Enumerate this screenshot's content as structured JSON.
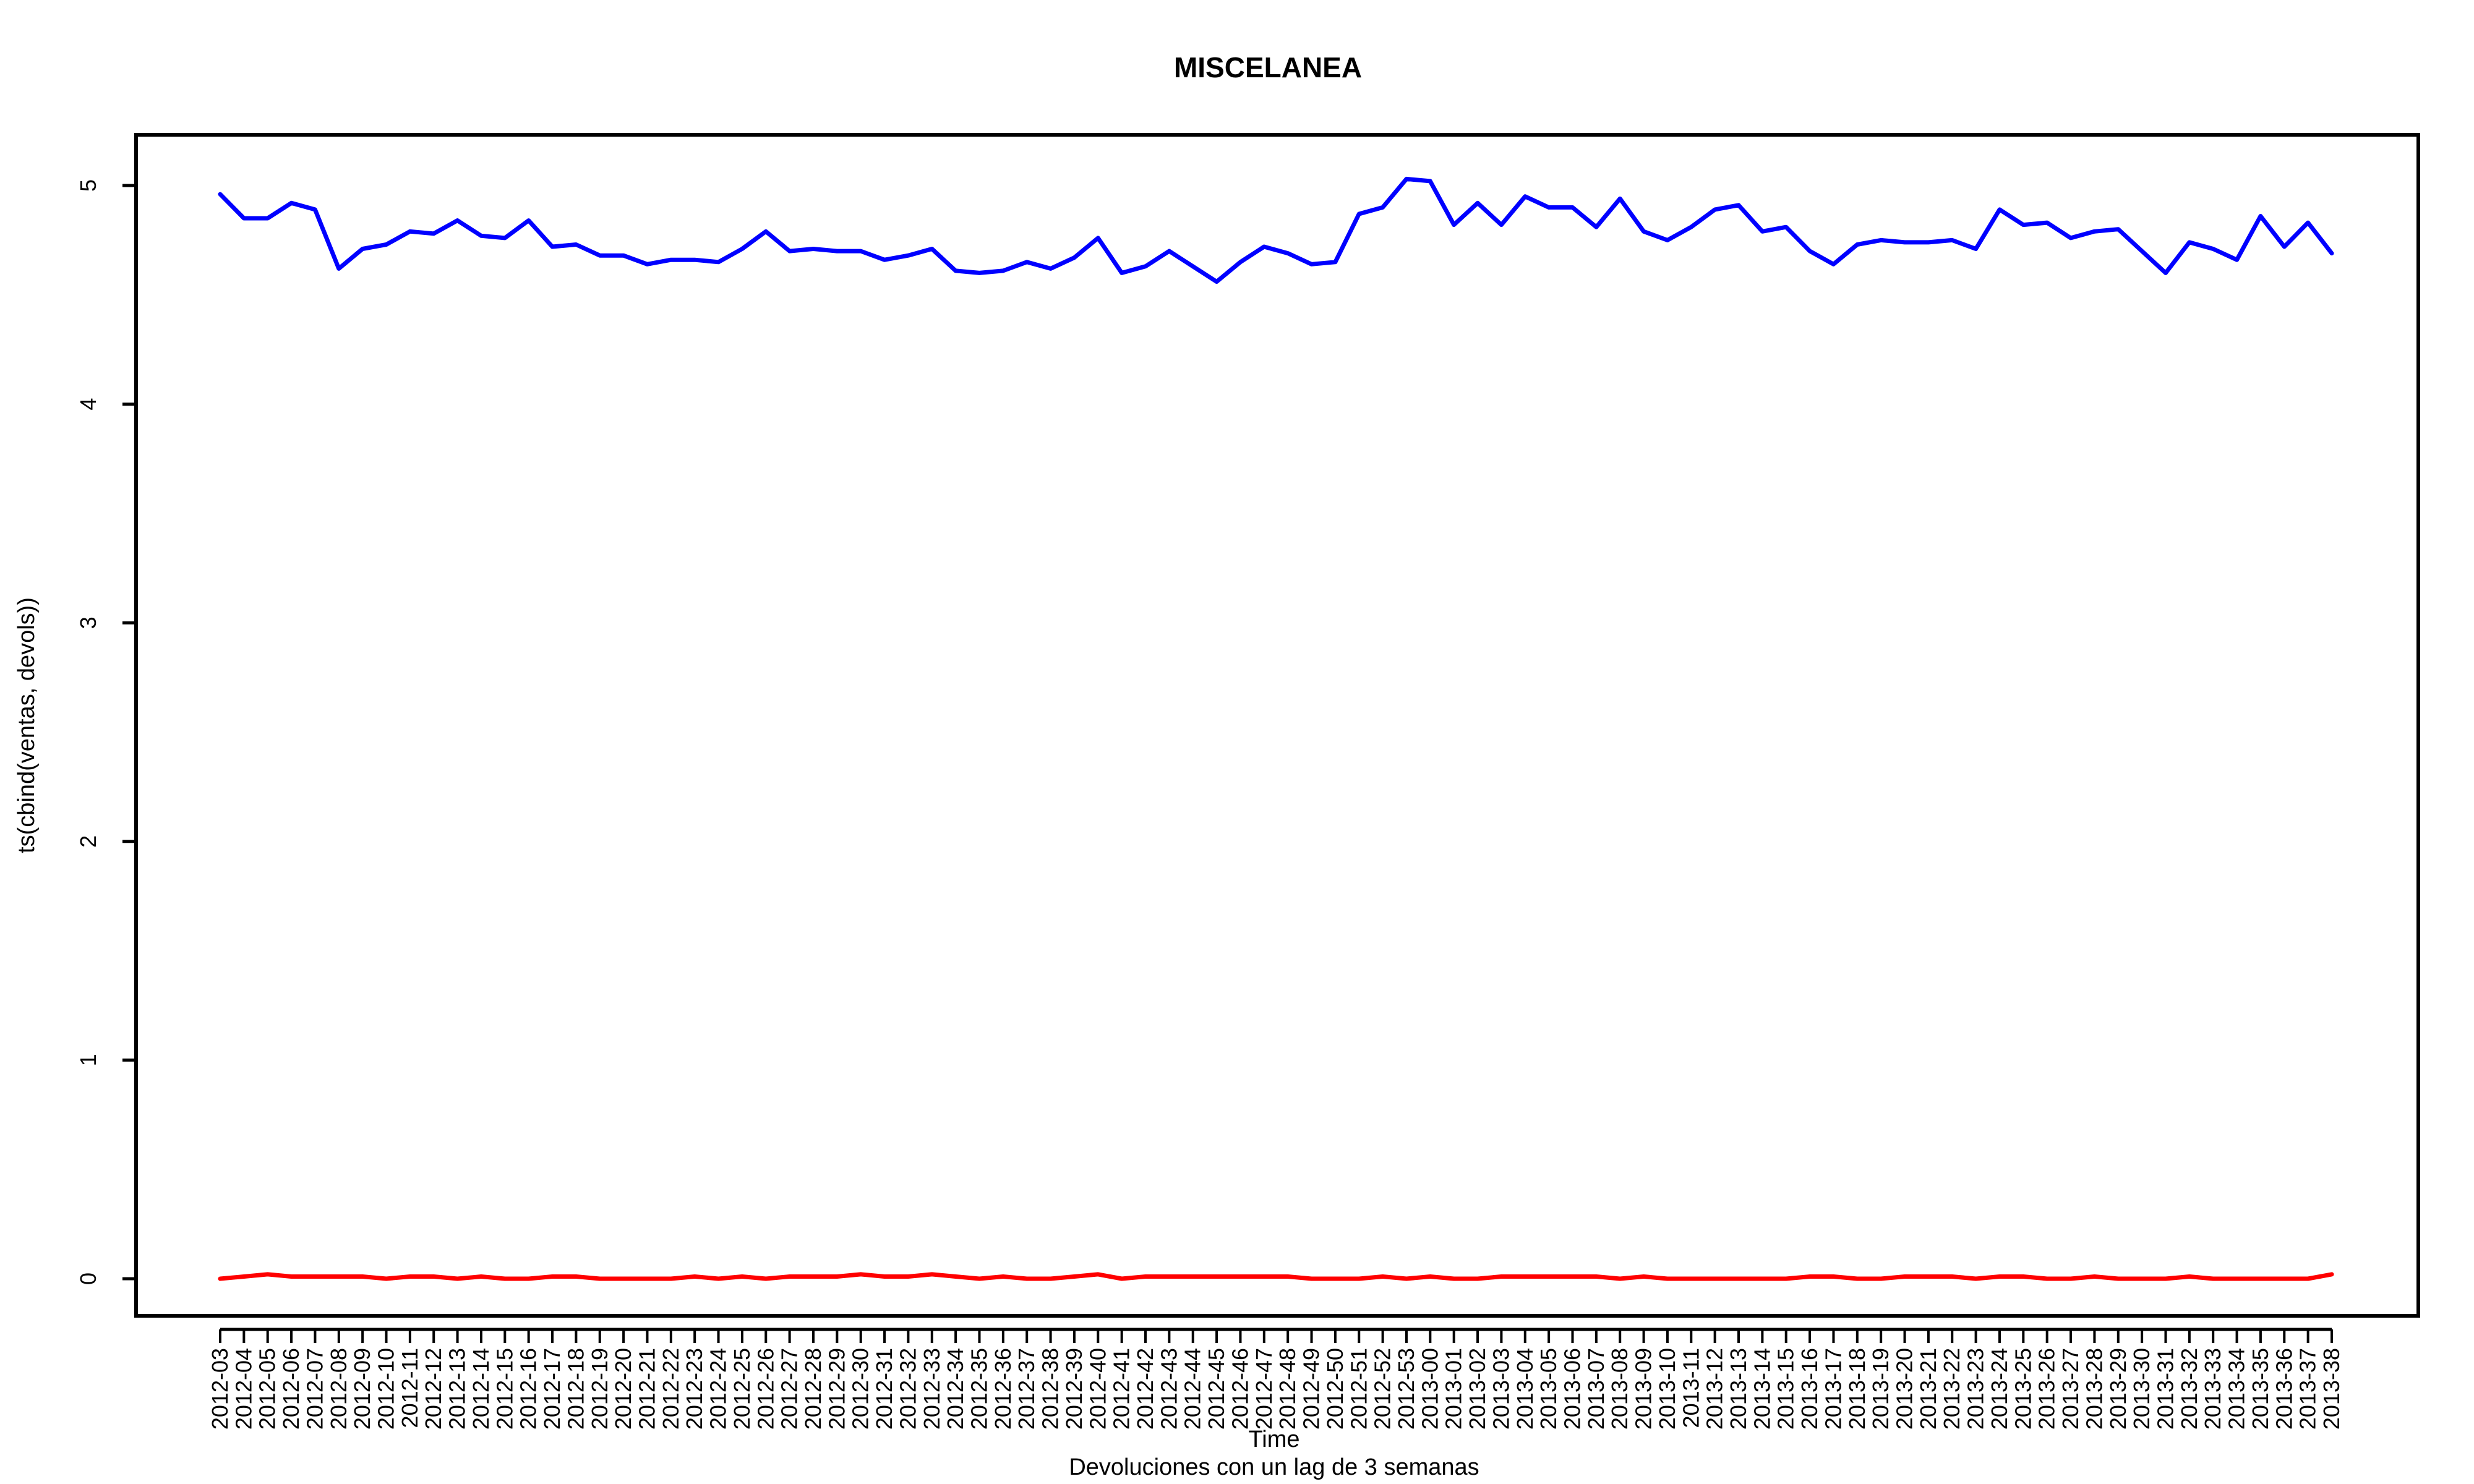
{
  "chart_data": {
    "type": "line",
    "title": "MISCELANEA",
    "xlabel": "Time",
    "ylabel": "ts(cbind(ventas, devols))",
    "subtitle": "Devoluciones con un lag de 3 semanas",
    "ylim": [
      0,
      5
    ],
    "yticks": [
      "0",
      "1",
      "2",
      "3",
      "4",
      "5"
    ],
    "grid": false,
    "legend": "none",
    "categories": [
      "2012-03",
      "2012-04",
      "2012-05",
      "2012-06",
      "2012-07",
      "2012-08",
      "2012-09",
      "2012-10",
      "2012-11",
      "2012-12",
      "2012-13",
      "2012-14",
      "2012-15",
      "2012-16",
      "2012-17",
      "2012-18",
      "2012-19",
      "2012-20",
      "2012-21",
      "2012-22",
      "2012-23",
      "2012-24",
      "2012-25",
      "2012-26",
      "2012-27",
      "2012-28",
      "2012-29",
      "2012-30",
      "2012-31",
      "2012-32",
      "2012-33",
      "2012-34",
      "2012-35",
      "2012-36",
      "2012-37",
      "2012-38",
      "2012-39",
      "2012-40",
      "2012-41",
      "2012-42",
      "2012-43",
      "2012-44",
      "2012-45",
      "2012-46",
      "2012-47",
      "2012-48",
      "2012-49",
      "2012-50",
      "2012-51",
      "2012-52",
      "2012-53",
      "2013-00",
      "2013-01",
      "2013-02",
      "2013-03",
      "2013-04",
      "2013-05",
      "2013-06",
      "2013-07",
      "2013-08",
      "2013-09",
      "2013-10",
      "2013-11",
      "2013-12",
      "2013-13",
      "2013-14",
      "2013-15",
      "2013-16",
      "2013-17",
      "2013-18",
      "2013-19",
      "2013-20",
      "2013-21",
      "2013-22",
      "2013-23",
      "2013-24",
      "2013-25",
      "2013-26",
      "2013-27",
      "2013-28",
      "2013-29",
      "2013-30",
      "2013-31",
      "2013-32",
      "2013-33",
      "2013-34",
      "2013-35",
      "2013-36",
      "2013-37",
      "2013-38"
    ],
    "series": [
      {
        "color": "#0000ff",
        "values": [
          4.96,
          4.85,
          4.85,
          4.92,
          4.89,
          4.62,
          4.71,
          4.73,
          4.79,
          4.78,
          4.84,
          4.77,
          4.76,
          4.84,
          4.72,
          4.73,
          4.68,
          4.68,
          4.64,
          4.66,
          4.66,
          4.65,
          4.71,
          4.79,
          4.7,
          4.71,
          4.7,
          4.7,
          4.66,
          4.68,
          4.71,
          4.61,
          4.6,
          4.61,
          4.65,
          4.62,
          4.67,
          4.76,
          4.6,
          4.63,
          4.7,
          4.63,
          4.56,
          4.65,
          4.72,
          4.69,
          4.64,
          4.65,
          4.87,
          4.9,
          5.03,
          5.02,
          4.82,
          4.92,
          4.82,
          4.95,
          4.9,
          4.9,
          4.81,
          4.94,
          4.79,
          4.75,
          4.81,
          4.89,
          4.91,
          4.79,
          4.81,
          4.7,
          4.64,
          4.73,
          4.75,
          4.74,
          4.74,
          4.75,
          4.71,
          4.89,
          4.82,
          4.83,
          4.76,
          4.79,
          4.8,
          4.7,
          4.6,
          4.74,
          4.71,
          4.66,
          4.86,
          4.72,
          4.83,
          4.69
        ]
      },
      {
        "color": "#ff0000",
        "values": [
          0.0,
          0.01,
          0.02,
          0.01,
          0.01,
          0.01,
          0.01,
          0.0,
          0.01,
          0.01,
          0.0,
          0.01,
          0.0,
          0.0,
          0.01,
          0.01,
          0.0,
          0.0,
          0.0,
          0.0,
          0.01,
          0.0,
          0.01,
          0.0,
          0.01,
          0.01,
          0.01,
          0.02,
          0.01,
          0.01,
          0.02,
          0.01,
          0.0,
          0.01,
          0.0,
          0.0,
          0.01,
          0.02,
          0.0,
          0.01,
          0.01,
          0.01,
          0.01,
          0.01,
          0.01,
          0.01,
          0.0,
          0.0,
          0.0,
          0.01,
          0.0,
          0.01,
          0.0,
          0.0,
          0.01,
          0.01,
          0.01,
          0.01,
          0.01,
          0.0,
          0.01,
          0.0,
          0.0,
          0.0,
          0.0,
          0.0,
          0.0,
          0.01,
          0.01,
          0.0,
          0.0,
          0.01,
          0.01,
          0.01,
          0.0,
          0.01,
          0.01,
          0.0,
          0.0,
          0.01,
          0.0,
          0.0,
          0.0,
          0.01,
          0.0,
          0.0,
          0.0,
          0.0,
          0.0,
          0.02
        ]
      }
    ]
  }
}
